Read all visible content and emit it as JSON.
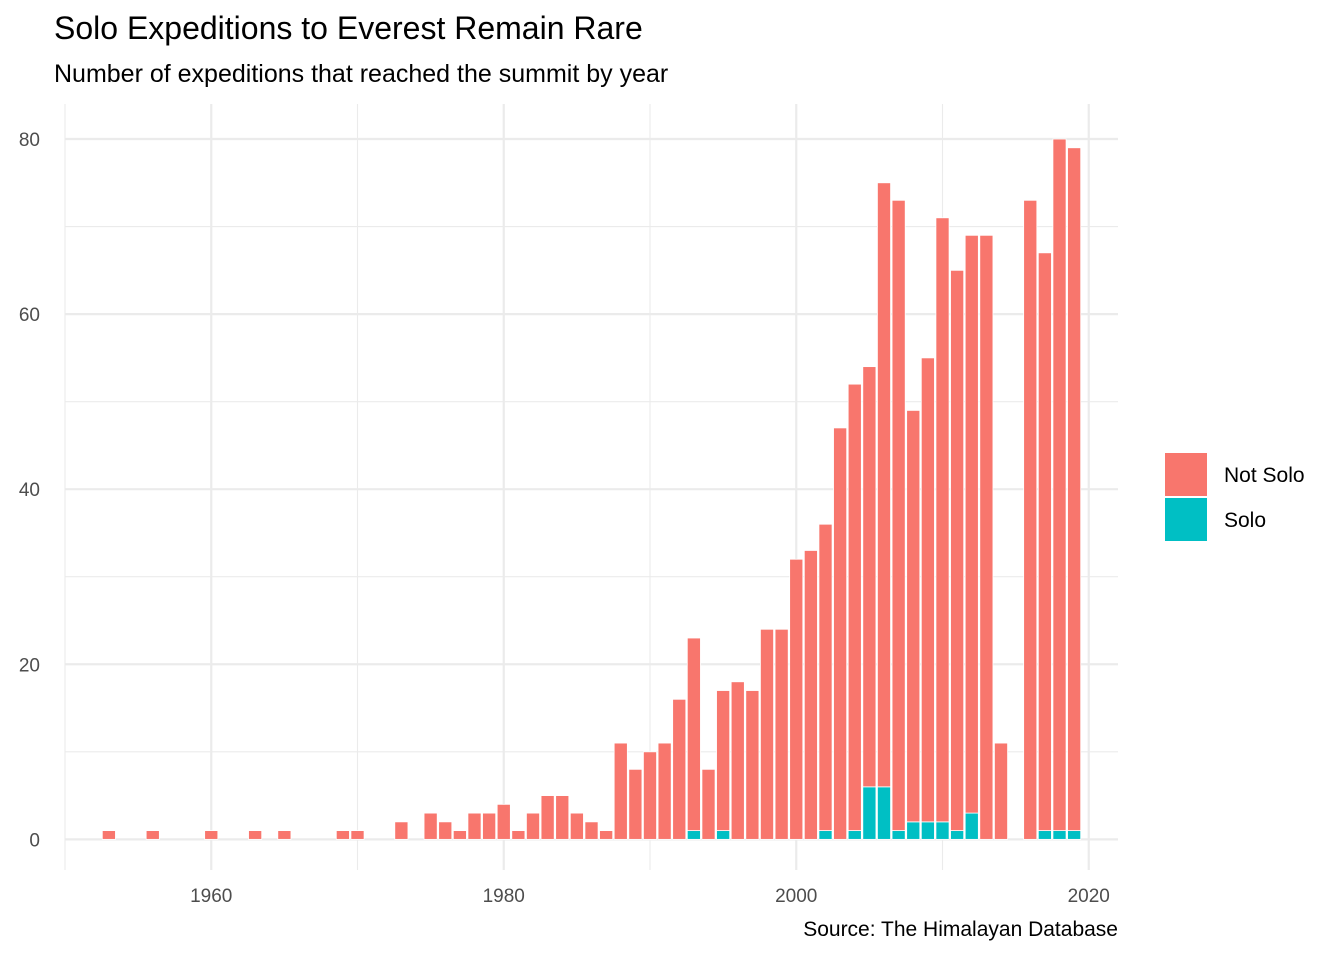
{
  "chart_data": {
    "type": "bar",
    "stacked": true,
    "title": "Solo Expeditions to Everest Remain Rare",
    "subtitle": "Number of expeditions that reached the summit by year",
    "caption": "Source: The Himalayan Database",
    "xlabel": "",
    "ylabel": "",
    "xlim": [
      1950,
      2022
    ],
    "ylim": [
      -3.5,
      84
    ],
    "x_ticks": [
      1960,
      1980,
      2000,
      2020
    ],
    "y_ticks": [
      0,
      20,
      40,
      60,
      80
    ],
    "grid": true,
    "legend": {
      "position": "right",
      "title": ""
    },
    "colors": {
      "Not Solo": "#F8766D",
      "Solo": "#00BFC4"
    },
    "x": [
      1953,
      1956,
      1960,
      1963,
      1965,
      1969,
      1970,
      1973,
      1975,
      1976,
      1977,
      1978,
      1979,
      1980,
      1981,
      1982,
      1983,
      1984,
      1985,
      1986,
      1987,
      1988,
      1989,
      1990,
      1991,
      1992,
      1993,
      1994,
      1995,
      1996,
      1997,
      1998,
      1999,
      2000,
      2001,
      2002,
      2003,
      2004,
      2005,
      2006,
      2007,
      2008,
      2009,
      2010,
      2011,
      2012,
      2013,
      2014,
      2016,
      2017,
      2018,
      2019
    ],
    "series": [
      {
        "name": "Solo",
        "values": [
          0,
          0,
          0,
          0,
          0,
          0,
          0,
          0,
          0,
          0,
          0,
          0,
          0,
          0,
          0,
          0,
          0,
          0,
          0,
          0,
          0,
          0,
          0,
          0,
          0,
          0,
          1,
          0,
          1,
          0,
          0,
          0,
          0,
          0,
          0,
          1,
          0,
          1,
          6,
          6,
          1,
          2,
          2,
          2,
          1,
          3,
          0,
          0,
          0,
          1,
          1,
          1
        ]
      },
      {
        "name": "Not Solo",
        "values": [
          1,
          1,
          1,
          1,
          1,
          1,
          1,
          2,
          3,
          2,
          1,
          3,
          3,
          4,
          1,
          3,
          5,
          5,
          3,
          2,
          1,
          11,
          8,
          10,
          11,
          16,
          22,
          8,
          16,
          18,
          17,
          24,
          24,
          32,
          33,
          35,
          47,
          51,
          48,
          69,
          72,
          47,
          53,
          69,
          64,
          66,
          69,
          11,
          73,
          66,
          79,
          78
        ]
      }
    ]
  }
}
